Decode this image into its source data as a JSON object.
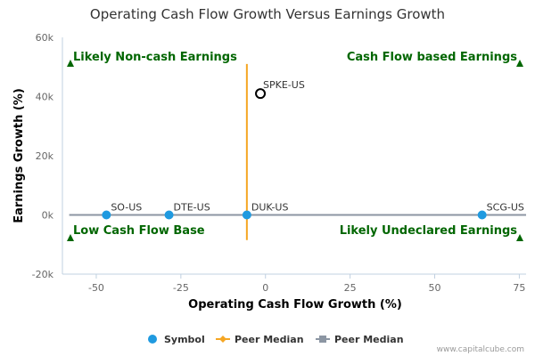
{
  "chart_data": {
    "type": "scatter",
    "title": "Operating Cash Flow Growth Versus Earnings Growth",
    "xlabel": "Operating Cash Flow Growth (%)",
    "ylabel": "Earnings Growth (%)",
    "xlim": [
      -60,
      77
    ],
    "ylim": [
      -20000,
      60000
    ],
    "x_ticks": [
      -50,
      -25,
      0,
      25,
      50,
      75
    ],
    "x_tick_labels": [
      "-50",
      "-25",
      "0",
      "25",
      "50",
      "75"
    ],
    "y_ticks": [
      -20000,
      0,
      20000,
      40000,
      60000
    ],
    "y_tick_labels": [
      "-20k",
      "0k",
      "20k",
      "40k",
      "60k"
    ],
    "grid": false,
    "series": [
      {
        "name": "Symbol",
        "color": "#1f9ae0",
        "points": [
          {
            "label": "SO-US",
            "x": -47,
            "y": 0
          },
          {
            "label": "DTE-US",
            "x": -28.5,
            "y": 0
          },
          {
            "label": "DUK-US",
            "x": -5.5,
            "y": 0
          },
          {
            "label": "SCG-US",
            "x": 64,
            "y": 0
          }
        ]
      },
      {
        "name": "Peer Median",
        "color": "#f5a623",
        "line_x": -5.5,
        "y_range": [
          -8500,
          51000
        ]
      },
      {
        "name": "Peer Median",
        "color": "#8c96a3",
        "line_y": 0,
        "x_range": [
          -58,
          77
        ]
      }
    ],
    "highlight": {
      "label": "SPKE-US",
      "x": -1.5,
      "y": 41000,
      "color": "#000000"
    },
    "quadrant_labels": [
      {
        "text": "Likely Non-cash Earnings",
        "corner": "top-left"
      },
      {
        "text": "Cash Flow based Earnings",
        "corner": "top-right"
      },
      {
        "text": "Low Cash Flow Base",
        "corner": "bottom-left"
      },
      {
        "text": "Likely Undeclared Earnings",
        "corner": "bottom-right"
      }
    ],
    "legend": {
      "placement": "bottom",
      "items": [
        "Symbol",
        "Peer Median",
        "Peer Median"
      ]
    },
    "credit": "www.capitalcube.com"
  }
}
